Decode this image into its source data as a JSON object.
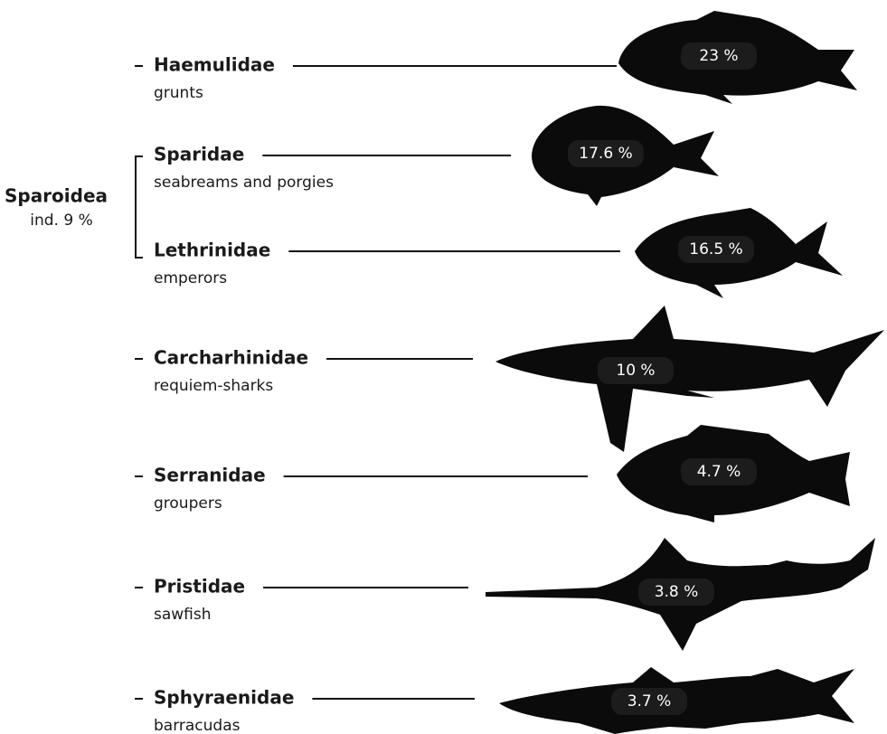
{
  "group": {
    "name": "Sparoidea",
    "note": "ind. 9 %"
  },
  "families": [
    {
      "name": "Haemulidae",
      "common": "grunts",
      "share": "23 %"
    },
    {
      "name": "Sparidae",
      "common": "seabreams and porgies",
      "share": "17.6 %"
    },
    {
      "name": "Lethrinidae",
      "common": "emperors",
      "share": "16.5 %"
    },
    {
      "name": "Carcharhinidae",
      "common": "requiem-sharks",
      "share": "10 %"
    },
    {
      "name": "Serranidae",
      "common": "groupers",
      "share": "4.7 %"
    },
    {
      "name": "Pristidae",
      "common": "sawfish",
      "share": "3.8 %"
    },
    {
      "name": "Sphyraenidae",
      "common": "barracudas",
      "share": "3.7 %"
    }
  ]
}
